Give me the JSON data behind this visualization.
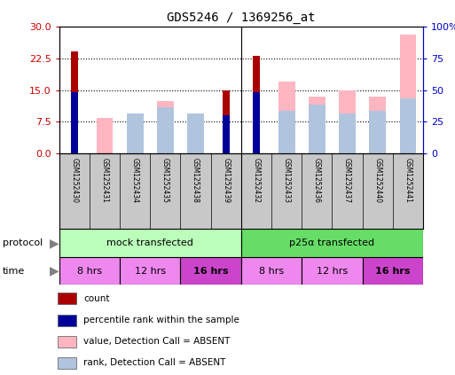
{
  "title": "GDS5246 / 1369256_at",
  "samples": [
    "GSM1252430",
    "GSM1252431",
    "GSM1252434",
    "GSM1252435",
    "GSM1252438",
    "GSM1252439",
    "GSM1252432",
    "GSM1252433",
    "GSM1252436",
    "GSM1252437",
    "GSM1252440",
    "GSM1252441"
  ],
  "count_values": [
    24.0,
    0,
    0,
    0,
    0,
    15.0,
    23.0,
    0,
    0,
    0,
    0,
    0
  ],
  "percentile_values": [
    14.5,
    0,
    0,
    0,
    0,
    9.0,
    14.5,
    0,
    0,
    0,
    0,
    0
  ],
  "value_absent": [
    0,
    8.5,
    9.0,
    12.5,
    9.0,
    0,
    0,
    17.0,
    13.5,
    15.0,
    13.5,
    28.0
  ],
  "rank_absent": [
    0,
    0,
    9.5,
    11.0,
    9.5,
    0,
    0,
    10.0,
    11.5,
    9.5,
    10.0,
    13.0
  ],
  "ylim_left": [
    0,
    30
  ],
  "ylim_right": [
    0,
    100
  ],
  "yticks_left": [
    0,
    7.5,
    15,
    22.5,
    30
  ],
  "yticks_right": [
    0,
    25,
    50,
    75,
    100
  ],
  "count_color": "#AA0000",
  "percentile_color": "#000099",
  "value_absent_color": "#FFB6C1",
  "rank_absent_color": "#B0C4DE",
  "left_axis_color": "#CC0000",
  "right_axis_color": "#0000CC",
  "bg_color": "#FFFFFF",
  "protocol_mock_color": "#BBFFBB",
  "protocol_p25_color": "#66DD66",
  "time_light_color": "#EE88EE",
  "time_dark_color": "#CC44CC",
  "sample_bg_color": "#C8C8C8",
  "legend_items": [
    {
      "label": "count",
      "color": "#AA0000"
    },
    {
      "label": "percentile rank within the sample",
      "color": "#000099"
    },
    {
      "label": "value, Detection Call = ABSENT",
      "color": "#FFB6C1"
    },
    {
      "label": "rank, Detection Call = ABSENT",
      "color": "#B0C4DE"
    }
  ]
}
